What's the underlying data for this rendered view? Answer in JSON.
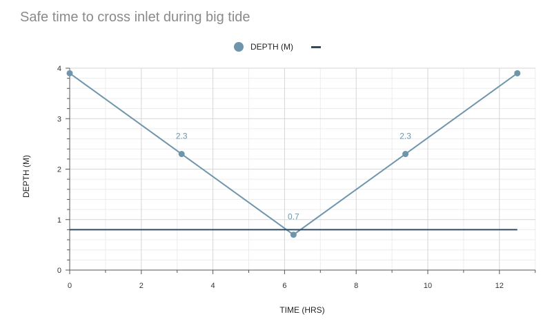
{
  "chart_data": {
    "type": "line",
    "title": "Safe time to cross inlet during big tide",
    "xlabel": "TIME (HRS)",
    "ylabel": "DEPTH (M)",
    "xlim": [
      0,
      13
    ],
    "ylim": [
      0,
      4
    ],
    "x_ticks": [
      "0",
      "2",
      "4",
      "6",
      "8",
      "10",
      "12"
    ],
    "y_ticks": [
      "0",
      "1",
      "2",
      "3",
      "4"
    ],
    "grid": true,
    "legend_position": "top-center",
    "series": [
      {
        "name": "DEPTH (M)",
        "color": "#6f95ac",
        "marker": "circle",
        "points": [
          {
            "x": 0,
            "y": 3.9,
            "label": ""
          },
          {
            "x": 3.125,
            "y": 2.3,
            "label": "2.3"
          },
          {
            "x": 6.25,
            "y": 0.7,
            "label": "0.7"
          },
          {
            "x": 9.375,
            "y": 2.3,
            "label": "2.3"
          },
          {
            "x": 12.5,
            "y": 3.9,
            "label": ""
          }
        ]
      },
      {
        "name": "",
        "color": "#2e4b66",
        "marker": "none",
        "points": [
          {
            "x": 0,
            "y": 0.8
          },
          {
            "x": 12.5,
            "y": 0.8
          }
        ]
      }
    ]
  }
}
